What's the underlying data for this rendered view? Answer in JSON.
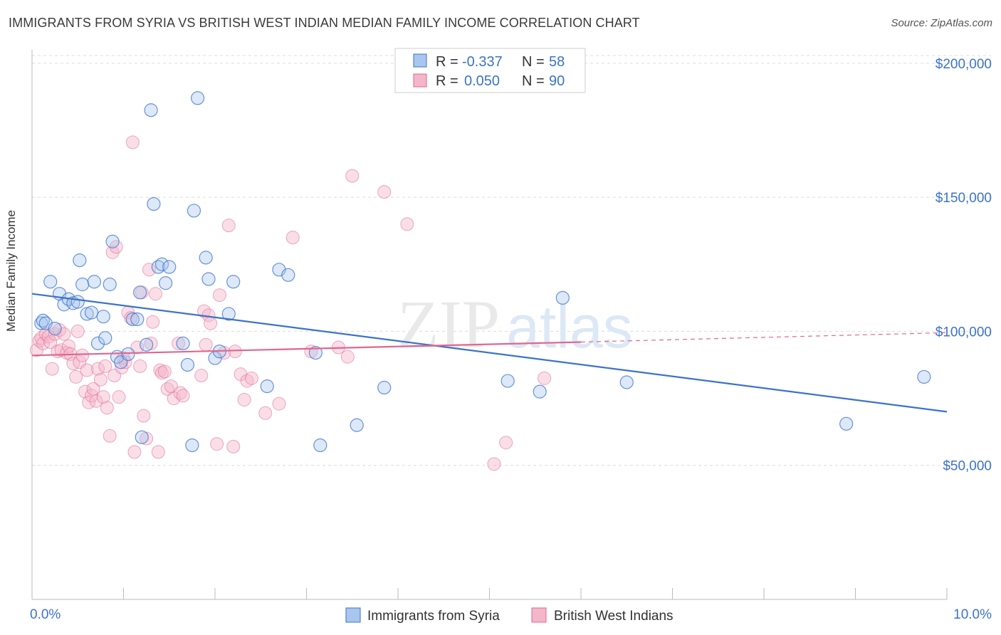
{
  "header": {
    "title": "IMMIGRANTS FROM SYRIA VS BRITISH WEST INDIAN MEDIAN FAMILY INCOME CORRELATION CHART",
    "source": "Source: ZipAtlas.com"
  },
  "watermark": {
    "zip": "ZIP",
    "atlas": "atlas"
  },
  "legend": {
    "rows": [
      {
        "r_label": "R = ",
        "r_value": "-0.337",
        "n_label": "N = ",
        "n_value": "58"
      },
      {
        "r_label": "R = ",
        "r_value": "0.050",
        "n_label": "N = ",
        "n_value": "90"
      }
    ]
  },
  "bottom_legend": {
    "a": "Immigrants from Syria",
    "b": "British West Indians"
  },
  "colors": {
    "blue": "#3b73c9",
    "blue_fill": "#a9c6ee",
    "pink": "#e0678f",
    "pink_fill": "#f4b6c9",
    "axis_text": "#3b73c9",
    "grid": "#dcdcdc"
  },
  "chart_data": {
    "type": "scatter",
    "title": "IMMIGRANTS FROM SYRIA VS BRITISH WEST INDIAN MEDIAN FAMILY INCOME CORRELATION CHART",
    "xlabel": "",
    "ylabel": "Median Family Income",
    "xlim": [
      0,
      10
    ],
    "ylim": [
      0,
      205000
    ],
    "x_tick_labels": {
      "0": "0.0%",
      "10": "10.0%"
    },
    "y_ticks": [
      50000,
      100000,
      150000,
      200000
    ],
    "y_tick_labels": [
      "$50,000",
      "$100,000",
      "$150,000",
      "$200,000"
    ],
    "series": [
      {
        "name": "Immigrants from Syria",
        "r": -0.337,
        "n": 58,
        "trend": {
          "x": [
            0,
            10
          ],
          "y": [
            114000,
            70000
          ]
        },
        "points": [
          [
            0.1,
            103000
          ],
          [
            0.12,
            104000
          ],
          [
            0.15,
            103000
          ],
          [
            0.2,
            118500
          ],
          [
            0.25,
            101000
          ],
          [
            0.3,
            114000
          ],
          [
            0.35,
            110000
          ],
          [
            0.4,
            112000
          ],
          [
            0.45,
            110500
          ],
          [
            0.5,
            111000
          ],
          [
            0.52,
            126500
          ],
          [
            0.55,
            117500
          ],
          [
            0.6,
            106500
          ],
          [
            0.65,
            107000
          ],
          [
            0.68,
            118500
          ],
          [
            0.72,
            95500
          ],
          [
            0.78,
            105500
          ],
          [
            0.8,
            97500
          ],
          [
            0.85,
            117500
          ],
          [
            0.88,
            133500
          ],
          [
            0.93,
            90500
          ],
          [
            0.97,
            88500
          ],
          [
            1.05,
            91500
          ],
          [
            1.1,
            104500
          ],
          [
            1.15,
            104500
          ],
          [
            1.18,
            114500
          ],
          [
            1.2,
            60500
          ],
          [
            1.25,
            95000
          ],
          [
            1.3,
            182500
          ],
          [
            1.33,
            147500
          ],
          [
            1.38,
            124000
          ],
          [
            1.42,
            125000
          ],
          [
            1.46,
            118000
          ],
          [
            1.5,
            124000
          ],
          [
            1.65,
            95500
          ],
          [
            1.7,
            87500
          ],
          [
            1.75,
            57500
          ],
          [
            1.77,
            145000
          ],
          [
            1.81,
            187000
          ],
          [
            1.9,
            127500
          ],
          [
            1.93,
            119500
          ],
          [
            2.0,
            90000
          ],
          [
            2.05,
            92500
          ],
          [
            2.15,
            106500
          ],
          [
            2.2,
            118500
          ],
          [
            2.57,
            79500
          ],
          [
            2.7,
            123000
          ],
          [
            2.8,
            121000
          ],
          [
            3.1,
            92000
          ],
          [
            3.15,
            57500
          ],
          [
            3.55,
            65000
          ],
          [
            3.85,
            79000
          ],
          [
            5.2,
            81500
          ],
          [
            5.55,
            77500
          ],
          [
            5.8,
            112500
          ],
          [
            6.5,
            81000
          ],
          [
            8.9,
            65500
          ],
          [
            9.75,
            83000
          ]
        ]
      },
      {
        "name": "British West Indians",
        "r": 0.05,
        "n": 90,
        "trend": {
          "x": [
            0,
            6
          ],
          "y": [
            91000,
            96000
          ]
        },
        "trend_dashed": {
          "x": [
            6,
            10
          ],
          "y": [
            96000,
            99500
          ]
        },
        "points": [
          [
            0.05,
            93000
          ],
          [
            0.08,
            96500
          ],
          [
            0.1,
            97500
          ],
          [
            0.12,
            95500
          ],
          [
            0.15,
            99000
          ],
          [
            0.18,
            98000
          ],
          [
            0.2,
            96000
          ],
          [
            0.22,
            86000
          ],
          [
            0.25,
            99000
          ],
          [
            0.28,
            92500
          ],
          [
            0.3,
            100500
          ],
          [
            0.32,
            93000
          ],
          [
            0.35,
            99000
          ],
          [
            0.38,
            92000
          ],
          [
            0.4,
            94500
          ],
          [
            0.42,
            91500
          ],
          [
            0.45,
            88000
          ],
          [
            0.48,
            83000
          ],
          [
            0.5,
            100000
          ],
          [
            0.52,
            88500
          ],
          [
            0.55,
            91000
          ],
          [
            0.58,
            77500
          ],
          [
            0.6,
            85500
          ],
          [
            0.62,
            73500
          ],
          [
            0.65,
            76000
          ],
          [
            0.67,
            78500
          ],
          [
            0.7,
            74000
          ],
          [
            0.72,
            86000
          ],
          [
            0.75,
            82000
          ],
          [
            0.78,
            75500
          ],
          [
            0.8,
            87000
          ],
          [
            0.82,
            71500
          ],
          [
            0.85,
            61000
          ],
          [
            0.88,
            129500
          ],
          [
            0.9,
            83500
          ],
          [
            0.92,
            131500
          ],
          [
            0.95,
            75500
          ],
          [
            0.98,
            86500
          ],
          [
            1.0,
            90000
          ],
          [
            1.02,
            88500
          ],
          [
            1.05,
            107000
          ],
          [
            1.08,
            105000
          ],
          [
            1.1,
            170500
          ],
          [
            1.12,
            55000
          ],
          [
            1.15,
            94000
          ],
          [
            1.18,
            87000
          ],
          [
            1.2,
            114500
          ],
          [
            1.22,
            68500
          ],
          [
            1.25,
            60000
          ],
          [
            1.28,
            123000
          ],
          [
            1.3,
            95500
          ],
          [
            1.32,
            103500
          ],
          [
            1.35,
            114000
          ],
          [
            1.38,
            55000
          ],
          [
            1.4,
            85500
          ],
          [
            1.42,
            84500
          ],
          [
            1.45,
            85000
          ],
          [
            1.48,
            78500
          ],
          [
            1.52,
            79500
          ],
          [
            1.55,
            75000
          ],
          [
            1.6,
            95500
          ],
          [
            1.62,
            77000
          ],
          [
            1.65,
            76000
          ],
          [
            1.85,
            83500
          ],
          [
            1.88,
            107500
          ],
          [
            1.9,
            95000
          ],
          [
            1.93,
            106000
          ],
          [
            1.95,
            103000
          ],
          [
            2.02,
            58000
          ],
          [
            2.05,
            113500
          ],
          [
            2.1,
            92000
          ],
          [
            2.15,
            139500
          ],
          [
            2.2,
            57000
          ],
          [
            2.22,
            92500
          ],
          [
            2.28,
            84000
          ],
          [
            2.32,
            74500
          ],
          [
            2.35,
            81500
          ],
          [
            2.4,
            82500
          ],
          [
            2.55,
            69500
          ],
          [
            2.7,
            73000
          ],
          [
            2.85,
            135000
          ],
          [
            3.05,
            92500
          ],
          [
            3.35,
            94000
          ],
          [
            3.45,
            90500
          ],
          [
            3.5,
            158000
          ],
          [
            3.85,
            152000
          ],
          [
            4.1,
            140000
          ],
          [
            5.05,
            50500
          ],
          [
            5.18,
            58500
          ],
          [
            5.6,
            82500
          ]
        ]
      }
    ]
  }
}
